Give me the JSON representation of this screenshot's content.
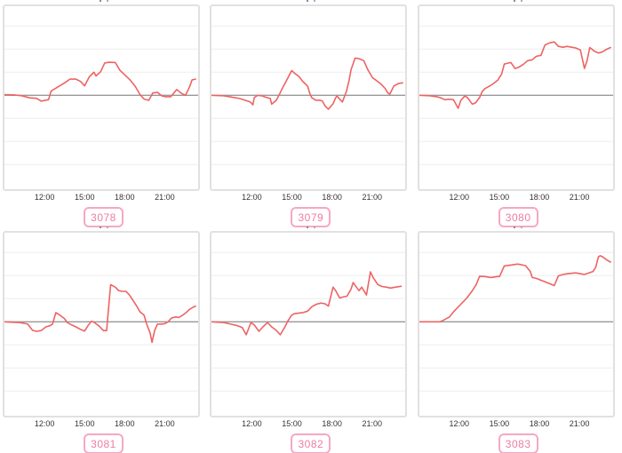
{
  "style": {
    "background": "#ffffff",
    "line_color": "#ee6363",
    "zero_line_color": "#999999",
    "gridline_color": "#ededed",
    "plot_border_color": "#e1e1e1",
    "badge_border_color": "#f6a8c3",
    "badge_text_color": "#ee7ca6",
    "badge_background": "#ffffff",
    "tick_label_color": "#333333"
  },
  "axis": {
    "x_min": 9.0,
    "x_max": 23.5,
    "x_ticks": [
      12,
      15,
      18,
      21
    ],
    "x_tick_labels": [
      "12:00",
      "15:00",
      "18:00",
      "21:00"
    ],
    "y_gridlines": [
      -3,
      -2,
      -1,
      0,
      1,
      2,
      3
    ],
    "y_min": -4.0,
    "y_max": 3.9,
    "grid": true,
    "legend": "none",
    "y_tick_labels": []
  },
  "chart_data": [
    {
      "type": "line",
      "label": "3078",
      "title": "",
      "x": [
        9.0,
        9.65,
        10.3,
        10.9,
        11.4,
        11.75,
        12.3,
        12.5,
        13.05,
        13.5,
        13.9,
        14.35,
        14.7,
        15.0,
        15.35,
        15.7,
        15.85,
        16.2,
        16.5,
        16.85,
        17.3,
        17.65,
        18.0,
        18.4,
        18.8,
        19.15,
        19.45,
        19.8,
        20.1,
        20.45,
        20.8,
        21.1,
        21.45,
        21.9,
        22.2,
        22.55,
        22.85,
        23.05,
        23.3
      ],
      "y": [
        0.03,
        0.02,
        -0.02,
        -0.11,
        -0.13,
        -0.25,
        -0.19,
        0.19,
        0.38,
        0.54,
        0.7,
        0.7,
        0.6,
        0.41,
        0.8,
        1.0,
        0.84,
        1.02,
        1.4,
        1.43,
        1.42,
        1.08,
        0.89,
        0.67,
        0.38,
        0.03,
        -0.16,
        -0.22,
        0.1,
        0.13,
        -0.03,
        -0.06,
        -0.06,
        0.25,
        0.1,
        0.0,
        0.35,
        0.67,
        0.7
      ]
    },
    {
      "type": "line",
      "label": "3079",
      "title": "",
      "x": [
        9.0,
        9.9,
        10.55,
        11.1,
        11.55,
        11.9,
        12.1,
        12.2,
        12.45,
        12.75,
        13.05,
        13.4,
        13.5,
        13.85,
        14.05,
        14.35,
        14.7,
        15.0,
        15.2,
        15.55,
        15.85,
        16.2,
        16.35,
        16.5,
        16.8,
        17.1,
        17.3,
        17.5,
        17.75,
        18.1,
        18.3,
        18.4,
        18.6,
        18.8,
        19.1,
        19.3,
        19.45,
        19.75,
        20.05,
        20.4,
        20.7,
        21.05,
        21.35,
        21.7,
        22.0,
        22.2,
        22.35,
        22.65,
        23.0,
        23.3
      ],
      "y": [
        0.0,
        -0.02,
        -0.08,
        -0.14,
        -0.22,
        -0.29,
        -0.41,
        -0.1,
        0.0,
        -0.02,
        -0.08,
        -0.14,
        -0.38,
        -0.22,
        0.0,
        0.35,
        0.73,
        1.07,
        0.97,
        0.81,
        0.59,
        0.4,
        0.1,
        -0.1,
        -0.21,
        -0.21,
        -0.25,
        -0.46,
        -0.6,
        -0.37,
        -0.1,
        -0.03,
        -0.17,
        -0.29,
        0.16,
        0.65,
        1.11,
        1.61,
        1.59,
        1.5,
        1.11,
        0.76,
        0.64,
        0.48,
        0.3,
        0.1,
        0.05,
        0.4,
        0.51,
        0.54
      ]
    },
    {
      "type": "line",
      "label": "3080",
      "title": "",
      "x": [
        9.0,
        9.8,
        10.3,
        10.55,
        10.9,
        11.25,
        11.55,
        11.9,
        12.1,
        12.4,
        12.6,
        12.95,
        13.2,
        13.5,
        13.7,
        13.9,
        14.25,
        14.55,
        14.85,
        15.15,
        15.35,
        15.55,
        15.85,
        16.15,
        16.45,
        16.8,
        17.1,
        17.45,
        17.75,
        18.1,
        18.4,
        18.75,
        19.1,
        19.4,
        19.75,
        20.05,
        20.4,
        20.7,
        21.05,
        21.35,
        21.55,
        21.75,
        22.1,
        22.4,
        22.7,
        23.0,
        23.3
      ],
      "y": [
        0.0,
        -0.02,
        -0.06,
        -0.1,
        -0.19,
        -0.17,
        -0.19,
        -0.56,
        -0.22,
        -0.03,
        -0.1,
        -0.38,
        -0.33,
        -0.1,
        0.16,
        0.29,
        0.4,
        0.51,
        0.65,
        0.92,
        1.35,
        1.38,
        1.42,
        1.16,
        1.22,
        1.35,
        1.5,
        1.54,
        1.69,
        1.73,
        2.18,
        2.27,
        2.31,
        2.12,
        2.08,
        2.12,
        2.08,
        2.05,
        1.96,
        1.16,
        1.5,
        2.07,
        1.91,
        1.83,
        1.88,
        1.99,
        2.07
      ]
    },
    {
      "type": "line",
      "label": "3081",
      "title": "",
      "x": [
        9.0,
        9.65,
        10.1,
        10.45,
        10.75,
        11.1,
        11.4,
        11.75,
        12.1,
        12.4,
        12.6,
        12.85,
        13.15,
        13.5,
        13.7,
        14.05,
        14.35,
        14.7,
        15.0,
        15.25,
        15.5,
        15.65,
        15.8,
        16.1,
        16.4,
        16.65,
        16.95,
        17.3,
        17.55,
        17.8,
        18.1,
        18.35,
        18.6,
        18.9,
        19.15,
        19.45,
        19.65,
        19.9,
        20.05,
        20.25,
        20.45,
        20.7,
        21.0,
        21.25,
        21.5,
        21.8,
        22.05,
        22.35,
        22.6,
        22.85,
        23.15,
        23.3
      ],
      "y": [
        0.0,
        -0.02,
        -0.03,
        -0.06,
        -0.1,
        -0.37,
        -0.41,
        -0.38,
        -0.22,
        -0.17,
        -0.1,
        0.4,
        0.29,
        0.13,
        -0.03,
        -0.14,
        -0.22,
        -0.33,
        -0.4,
        -0.17,
        0.02,
        0.0,
        -0.06,
        -0.19,
        -0.38,
        -0.38,
        1.61,
        1.5,
        1.35,
        1.32,
        1.32,
        1.16,
        0.95,
        0.68,
        0.43,
        0.29,
        -0.1,
        -0.48,
        -0.89,
        -0.37,
        -0.1,
        -0.1,
        -0.08,
        0.0,
        0.16,
        0.21,
        0.19,
        0.29,
        0.4,
        0.54,
        0.64,
        0.68
      ]
    },
    {
      "type": "line",
      "label": "3082",
      "title": "",
      "x": [
        9.0,
        9.9,
        10.45,
        10.95,
        11.3,
        11.6,
        11.95,
        12.2,
        12.55,
        12.85,
        13.2,
        13.5,
        13.85,
        14.15,
        14.5,
        14.7,
        15.0,
        15.2,
        15.55,
        15.85,
        16.2,
        16.5,
        16.85,
        17.2,
        17.5,
        17.75,
        18.1,
        18.3,
        18.6,
        18.8,
        19.15,
        19.45,
        19.6,
        19.8,
        20.05,
        20.25,
        20.6,
        20.9,
        21.1,
        21.45,
        21.75,
        22.1,
        22.4,
        22.75,
        23.2
      ],
      "y": [
        0.0,
        -0.03,
        -0.1,
        -0.17,
        -0.25,
        -0.56,
        -0.03,
        -0.13,
        -0.41,
        -0.22,
        -0.03,
        -0.22,
        -0.37,
        -0.56,
        -0.22,
        0.02,
        0.29,
        0.35,
        0.38,
        0.4,
        0.46,
        0.65,
        0.76,
        0.81,
        0.78,
        0.68,
        1.5,
        1.35,
        1.03,
        1.07,
        1.11,
        1.42,
        1.7,
        1.54,
        1.35,
        1.5,
        1.16,
        2.16,
        1.92,
        1.61,
        1.53,
        1.5,
        1.46,
        1.5,
        1.54
      ]
    },
    {
      "type": "line",
      "label": "3083",
      "title": "",
      "x": [
        9.0,
        9.45,
        9.9,
        10.3,
        10.55,
        10.9,
        11.25,
        11.6,
        12.1,
        12.55,
        12.95,
        13.25,
        13.5,
        13.9,
        14.35,
        14.85,
        15.0,
        15.35,
        15.55,
        16.0,
        16.35,
        16.65,
        16.95,
        17.3,
        17.45,
        17.75,
        18.1,
        18.4,
        18.75,
        19.1,
        19.4,
        19.75,
        20.05,
        20.4,
        20.7,
        21.05,
        21.35,
        21.7,
        22.0,
        22.2,
        22.4,
        22.55,
        22.75,
        23.0,
        23.3
      ],
      "y": [
        0.0,
        0.0,
        0.0,
        0.0,
        0.0,
        0.1,
        0.21,
        0.46,
        0.76,
        1.03,
        1.34,
        1.61,
        1.97,
        1.96,
        1.92,
        1.96,
        1.96,
        2.42,
        2.43,
        2.47,
        2.5,
        2.47,
        2.43,
        2.18,
        1.92,
        1.88,
        1.8,
        1.73,
        1.65,
        1.57,
        1.99,
        2.05,
        2.08,
        2.1,
        2.12,
        2.08,
        2.05,
        2.12,
        2.18,
        2.37,
        2.82,
        2.86,
        2.8,
        2.69,
        2.59
      ]
    }
  ]
}
